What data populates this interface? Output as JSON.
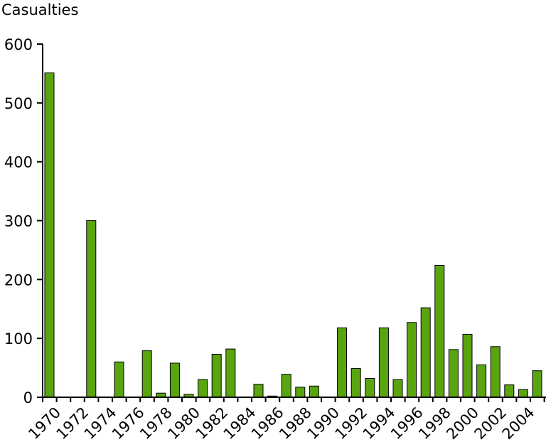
{
  "chart_data": {
    "type": "bar",
    "title": "",
    "ylabel": "Casualties",
    "xlabel": "",
    "ylim": [
      0,
      600
    ],
    "yticks": [
      0,
      100,
      200,
      300,
      400,
      500,
      600
    ],
    "bar_color": "#5aa50f",
    "grid": false,
    "categories": [
      "1970",
      "1971",
      "1972",
      "1973",
      "1974",
      "1975",
      "1976",
      "1977",
      "1978",
      "1979",
      "1980",
      "1981",
      "1982",
      "1983",
      "1984",
      "1985",
      "1986",
      "1987",
      "1988",
      "1989",
      "1990",
      "1991",
      "1992",
      "1993",
      "1994",
      "1995",
      "1996",
      "1997",
      "1998",
      "1999",
      "2000",
      "2001",
      "2002",
      "2003",
      "2004",
      "2005"
    ],
    "tick_labels": [
      "1970",
      "",
      "1972",
      "",
      "1974",
      "",
      "1976",
      "",
      "1978",
      "",
      "1980",
      "",
      "1982",
      "",
      "1984",
      "",
      "1986",
      "",
      "1988",
      "",
      "1990",
      "",
      "1992",
      "",
      "1994",
      "",
      "1996",
      "",
      "1998",
      "",
      "2000",
      "",
      "2002",
      "",
      "2004",
      ""
    ],
    "values": [
      551,
      0,
      0,
      300,
      0,
      60,
      0,
      79,
      7,
      58,
      5,
      30,
      73,
      82,
      0,
      22,
      2,
      39,
      17,
      19,
      0,
      118,
      49,
      32,
      118,
      30,
      127,
      152,
      224,
      81,
      107,
      55,
      86,
      21,
      13,
      45
    ]
  }
}
